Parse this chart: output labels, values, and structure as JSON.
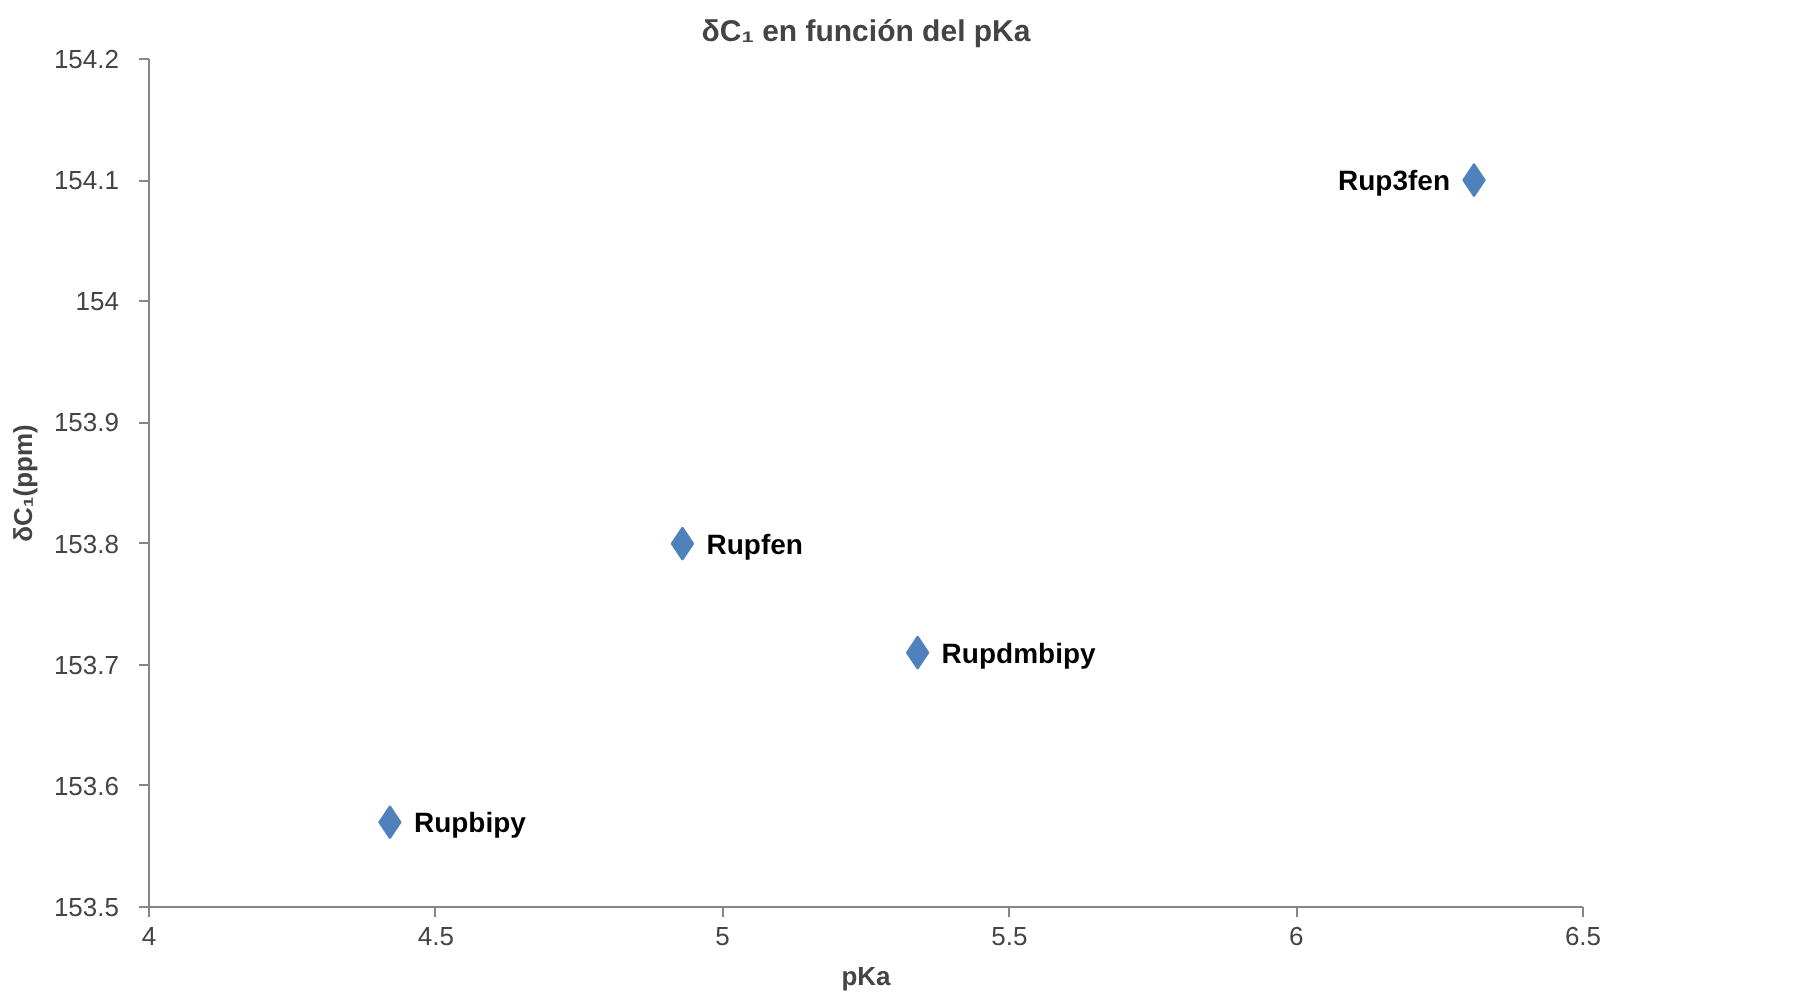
{
  "chart_data": {
    "type": "scatter",
    "title": "δC₁ en función del pKa",
    "xlabel": "pKa",
    "ylabel": "δC₁(ppm)",
    "x": [
      4.42,
      4.93,
      5.34,
      6.31
    ],
    "series": [
      {
        "color": "#4f81bd",
        "values": [
          153.57,
          153.8,
          153.71,
          154.1
        ]
      }
    ],
    "xlim": [
      4,
      6.5
    ],
    "xticks": [
      4,
      4.5,
      5,
      5.5,
      6,
      6.5
    ],
    "ylim": [
      153.5,
      154.2
    ],
    "yticks": [
      153.5,
      153.6,
      153.7,
      153.8,
      153.9,
      154,
      154.1,
      154.2
    ],
    "grid": false,
    "marker": "diamond",
    "annotations": [
      {
        "text": "Rupbipy",
        "x": 4.42,
        "y": 153.57
      },
      {
        "text": "Rupfen",
        "x": 4.93,
        "y": 153.8
      },
      {
        "text": "Rupdmbipy",
        "x": 5.34,
        "y": 153.71
      },
      {
        "text": "Rup3fen",
        "x": 6.31,
        "y": 154.1
      }
    ]
  }
}
